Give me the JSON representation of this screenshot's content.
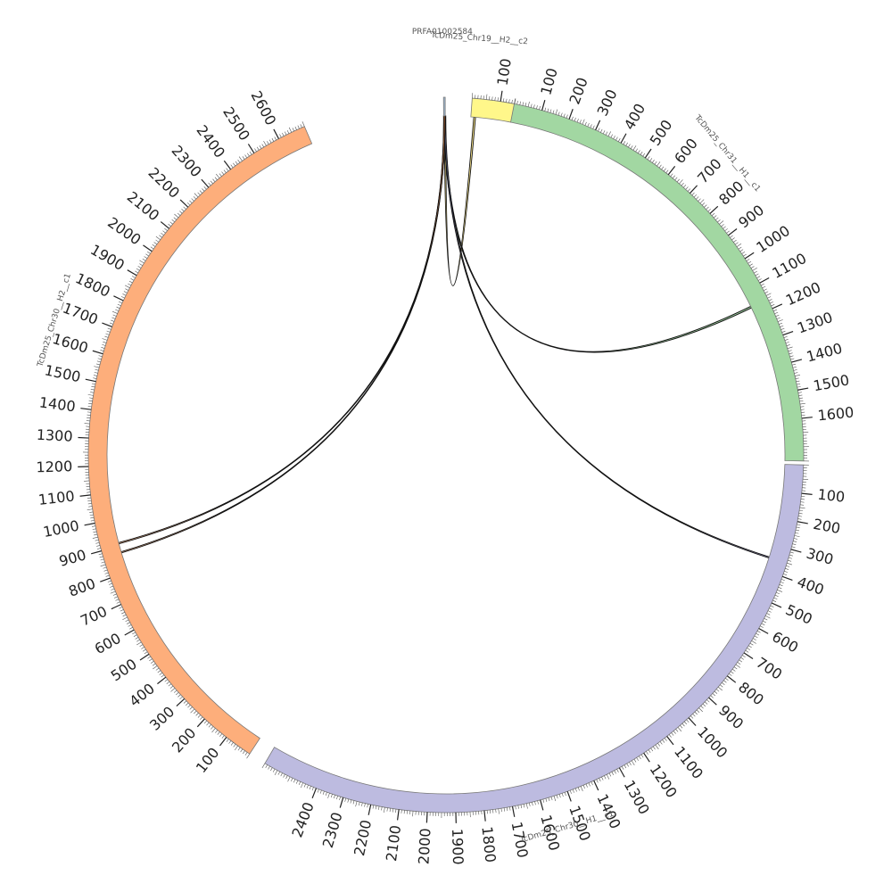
{
  "segments": [
    {
      "id": "seg-chr19",
      "name": "TcDm25_Chr19__H2__c2",
      "color": "#fff78a",
      "ticks": [
        100
      ]
    },
    {
      "id": "seg-chr31",
      "name": "TcDm25_Chr31__H1__c1",
      "color": "#a2d7a2",
      "ticks": [
        100,
        200,
        300,
        400,
        500,
        600,
        700,
        800,
        900,
        1000,
        1100,
        1200,
        1300,
        1400,
        1500,
        1600
      ]
    },
    {
      "id": "seg-chr30h1",
      "name": "TcDm25_Chr30__H1__c1",
      "color": "#bdbbe0",
      "ticks": [
        100,
        200,
        300,
        400,
        500,
        600,
        700,
        800,
        900,
        1000,
        1100,
        1200,
        1300,
        1400,
        1500,
        1600,
        1700,
        1800,
        1900,
        2000,
        2100,
        2200,
        2300,
        2400
      ]
    },
    {
      "id": "seg-chr30h2",
      "name": "TcDm25_Chr30__H2__c1",
      "color": "#fdae7b",
      "ticks": [
        100,
        200,
        300,
        400,
        500,
        600,
        700,
        800,
        900,
        1000,
        1100,
        1200,
        1300,
        1400,
        1500,
        1600,
        1700,
        1800,
        1900,
        2000,
        2100,
        2200,
        2300,
        2400,
        2500,
        2600
      ]
    },
    {
      "id": "seg-prf",
      "name": "PRFA01002584",
      "color": "#9fb8d0",
      "ticks": []
    }
  ],
  "links": [
    {
      "from": "PRFA01002584",
      "to": "TcDm25_Chr19__H2__c2"
    },
    {
      "from": "PRFA01002584",
      "to": "TcDm25_Chr31__H1__c1"
    },
    {
      "from": "PRFA01002584",
      "to": "TcDm25_Chr30__H1__c1"
    },
    {
      "from": "PRFA01002584",
      "to": "TcDm25_Chr30__H2__c1"
    },
    {
      "from": "PRFA01002584",
      "to": "TcDm25_Chr30__H2__c1"
    }
  ]
}
